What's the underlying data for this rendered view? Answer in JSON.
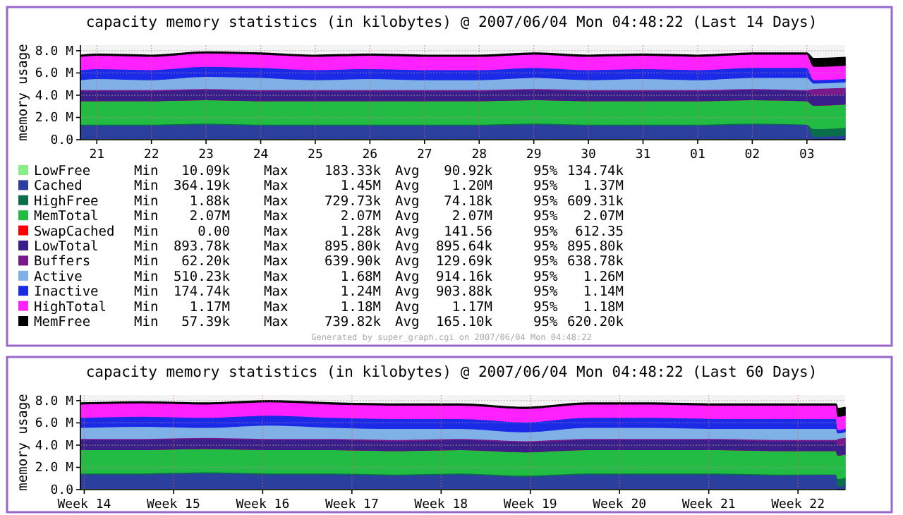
{
  "chart_data": [
    {
      "type": "area",
      "stacked": true,
      "grid": true,
      "legend": "bottom",
      "title": "capacity memory statistics (in kilobytes) @ 2007/06/04 Mon 04:48:22 (Last 14 Days)",
      "ylabel": "memory usage",
      "x": [
        "2007-05-21T04:48",
        "2007-05-21T12:00",
        "2007-05-22T12:00",
        "2007-05-23T12:00",
        "2007-05-24T12:00",
        "2007-05-25T12:00",
        "2007-05-26T12:00",
        "2007-05-27T12:00",
        "2007-05-28T12:00",
        "2007-05-29T12:00",
        "2007-05-30T12:00",
        "2007-05-31T12:00",
        "2007-06-01T12:00",
        "2007-06-02T12:00",
        "2007-06-03T12:00",
        "2007-06-03T15:00",
        "2007-06-04T04:48"
      ],
      "xlim": [
        "2007-05-21T04:48",
        "2007-06-04T04:48"
      ],
      "xticks": [
        {
          "value": "2007-05-21T12:00",
          "label": "21"
        },
        {
          "value": "2007-05-22T12:00",
          "label": "22"
        },
        {
          "value": "2007-05-23T12:00",
          "label": "23"
        },
        {
          "value": "2007-05-24T12:00",
          "label": "24"
        },
        {
          "value": "2007-05-25T12:00",
          "label": "25"
        },
        {
          "value": "2007-05-26T12:00",
          "label": "26"
        },
        {
          "value": "2007-05-27T12:00",
          "label": "27"
        },
        {
          "value": "2007-05-28T12:00",
          "label": "28"
        },
        {
          "value": "2007-05-29T12:00",
          "label": "29"
        },
        {
          "value": "2007-05-30T12:00",
          "label": "30"
        },
        {
          "value": "2007-05-31T12:00",
          "label": "31"
        },
        {
          "value": "2007-06-01T12:00",
          "label": "01"
        },
        {
          "value": "2007-06-02T12:00",
          "label": "02"
        },
        {
          "value": "2007-06-03T12:00",
          "label": "03"
        }
      ],
      "ylim": [
        0,
        8500000
      ],
      "yticks": [
        {
          "value": 0,
          "label": "0.0"
        },
        {
          "value": 2000000,
          "label": "2.0 M"
        },
        {
          "value": 4000000,
          "label": "4.0 M"
        },
        {
          "value": 6000000,
          "label": "6.0 M"
        },
        {
          "value": 8000000,
          "label": "8.0 M"
        }
      ],
      "series": [
        {
          "name": "LowFree",
          "color": "#88ee88",
          "values": [
            100000,
            100000,
            100000,
            100000,
            100000,
            100000,
            100000,
            100000,
            100000,
            100000,
            100000,
            100000,
            100000,
            100000,
            100000,
            0,
            0
          ]
        },
        {
          "name": "Cached",
          "color": "#2a3f9e",
          "values": [
            1200000,
            1200000,
            1200000,
            1300000,
            1200000,
            1200000,
            1200000,
            1200000,
            1200000,
            1300000,
            1200000,
            1200000,
            1200000,
            1300000,
            1300000,
            300000,
            400000
          ]
        },
        {
          "name": "HighFree",
          "color": "#0a6e4a",
          "values": [
            100000,
            100000,
            100000,
            100000,
            100000,
            100000,
            100000,
            100000,
            100000,
            100000,
            100000,
            100000,
            100000,
            100000,
            0,
            700000,
            700000
          ]
        },
        {
          "name": "MemTotal",
          "color": "#22bb44",
          "values": [
            2100000,
            2100000,
            2100000,
            2100000,
            2100000,
            2100000,
            2100000,
            2100000,
            2100000,
            2100000,
            2100000,
            2100000,
            2100000,
            2100000,
            2100000,
            2100000,
            2100000
          ]
        },
        {
          "name": "SwapCached",
          "color": "#ff0000",
          "values": [
            0,
            0,
            0,
            0,
            0,
            0,
            0,
            0,
            0,
            0,
            0,
            0,
            0,
            0,
            0,
            0,
            0
          ]
        },
        {
          "name": "LowTotal",
          "color": "#3a1f8a",
          "values": [
            900000,
            900000,
            900000,
            900000,
            900000,
            900000,
            900000,
            900000,
            900000,
            900000,
            900000,
            900000,
            900000,
            900000,
            900000,
            900000,
            900000
          ]
        },
        {
          "name": "Buffers",
          "color": "#7a1a8a",
          "values": [
            100000,
            100000,
            100000,
            100000,
            100000,
            100000,
            100000,
            100000,
            100000,
            100000,
            100000,
            100000,
            100000,
            100000,
            100000,
            600000,
            600000
          ]
        },
        {
          "name": "Active",
          "color": "#7fb0e6",
          "values": [
            900000,
            1000000,
            900000,
            1100000,
            1100000,
            900000,
            1000000,
            900000,
            900000,
            1000000,
            900000,
            1000000,
            900000,
            1000000,
            1100000,
            500000,
            500000
          ]
        },
        {
          "name": "Inactive",
          "color": "#1a2ae6",
          "values": [
            900000,
            900000,
            900000,
            900000,
            900000,
            900000,
            900000,
            900000,
            900000,
            900000,
            900000,
            900000,
            900000,
            900000,
            900000,
            300000,
            300000
          ]
        },
        {
          "name": "HighTotal",
          "color": "#ff22ff",
          "values": [
            1200000,
            1200000,
            1200000,
            1200000,
            1200000,
            1200000,
            1200000,
            1200000,
            1200000,
            1200000,
            1200000,
            1200000,
            1200000,
            1200000,
            1200000,
            1200000,
            1200000
          ]
        },
        {
          "name": "MemFree",
          "color": "#000000",
          "values": [
            100000,
            100000,
            100000,
            100000,
            100000,
            100000,
            100000,
            100000,
            100000,
            100000,
            100000,
            100000,
            100000,
            100000,
            100000,
            700000,
            700000
          ]
        }
      ],
      "annotations": [
        "Min",
        "10.09k",
        "Max",
        "183.33k",
        "Avg",
        "90.92k",
        "95%",
        "134.74k",
        "Min",
        "364.19k",
        "Max",
        "1.45M",
        "Avg",
        "1.20M",
        "95%",
        "1.37M",
        "Min",
        "1.88k",
        "Max",
        "729.73k",
        "Avg",
        "74.18k",
        "95%",
        "609.31k",
        "Min",
        "2.07M",
        "Max",
        "2.07M",
        "Avg",
        "2.07M",
        "95%",
        "2.07M",
        "Min",
        "0.00",
        "Max",
        "1.28k",
        "Avg",
        "141.56",
        "95%",
        "612.35",
        "Min",
        "893.78k",
        "Max",
        "895.80k",
        "Avg",
        "895.64k",
        "95%",
        "895.80k",
        "Min",
        "62.20k",
        "Max",
        "639.90k",
        "Avg",
        "129.69k",
        "95%",
        "638.78k",
        "Min",
        "510.23k",
        "Max",
        "1.68M",
        "Avg",
        "914.16k",
        "95%",
        "1.26M",
        "Min",
        "174.74k",
        "Max",
        "1.24M",
        "Avg",
        "903.88k",
        "95%",
        "1.14M",
        "Min",
        "1.17M",
        "Max",
        "1.18M",
        "Avg",
        "1.17M",
        "95%",
        "1.18M",
        "Min",
        "57.39k",
        "Max",
        "739.82k",
        "Avg",
        "165.10k",
        "95%",
        "620.20k",
        "Generated by super_graph.cgi on 2007/06/04 Mon 04:48:22"
      ]
    },
    {
      "type": "area",
      "stacked": true,
      "grid": true,
      "title": "capacity memory statistics (in kilobytes) @ 2007/06/04 Mon 04:48:22 (Last 60 Days)",
      "ylabel": "memory usage",
      "x": [
        "2007-04-05T04:48",
        "2007-04-10",
        "2007-04-15",
        "2007-04-20",
        "2007-04-25",
        "2007-04-30",
        "2007-05-05",
        "2007-05-10",
        "2007-05-15",
        "2007-05-20",
        "2007-05-25",
        "2007-05-30",
        "2007-06-03T12:00",
        "2007-06-03T15:00",
        "2007-06-04T04:48"
      ],
      "xlim": [
        "2007-04-05T04:48",
        "2007-06-04T04:48"
      ],
      "xticks": [
        {
          "value": "2007-04-05T12:00",
          "label": "Week 14"
        },
        {
          "value": "2007-04-12T12:00",
          "label": "Week 15"
        },
        {
          "value": "2007-04-19T12:00",
          "label": "Week 16"
        },
        {
          "value": "2007-04-26T12:00",
          "label": "Week 17"
        },
        {
          "value": "2007-05-03T12:00",
          "label": "Week 18"
        },
        {
          "value": "2007-05-10T12:00",
          "label": "Week 19"
        },
        {
          "value": "2007-05-17T12:00",
          "label": "Week 20"
        },
        {
          "value": "2007-05-24T12:00",
          "label": "Week 21"
        },
        {
          "value": "2007-05-31T12:00",
          "label": "Week 22"
        }
      ],
      "ylim": [
        0,
        8500000
      ],
      "yticks": [
        {
          "value": 0,
          "label": "0.0"
        },
        {
          "value": 2000000,
          "label": "2.0 M"
        },
        {
          "value": 4000000,
          "label": "4.0 M"
        },
        {
          "value": 6000000,
          "label": "6.0 M"
        },
        {
          "value": 8000000,
          "label": "8.0 M"
        }
      ],
      "series": [
        {
          "color": "#88ee88",
          "values": [
            100000,
            100000,
            100000,
            100000,
            100000,
            100000,
            100000,
            100000,
            100000,
            100000,
            100000,
            100000,
            100000,
            0,
            0
          ]
        },
        {
          "color": "#2a3f9e",
          "values": [
            1300000,
            1300000,
            1400000,
            1300000,
            1300000,
            1200000,
            1300000,
            1100000,
            1300000,
            1300000,
            1300000,
            1200000,
            1300000,
            300000,
            400000
          ]
        },
        {
          "color": "#0a6e4a",
          "values": [
            100000,
            100000,
            100000,
            100000,
            100000,
            100000,
            100000,
            100000,
            100000,
            100000,
            100000,
            100000,
            0,
            700000,
            700000
          ]
        },
        {
          "color": "#22bb44",
          "values": [
            2100000,
            2100000,
            2100000,
            2100000,
            2100000,
            2100000,
            2100000,
            2100000,
            2100000,
            2100000,
            2100000,
            2100000,
            2100000,
            2100000,
            2100000
          ]
        },
        {
          "color": "#ff0000",
          "values": [
            0,
            0,
            0,
            0,
            0,
            0,
            0,
            0,
            0,
            0,
            0,
            0,
            0,
            0,
            0
          ]
        },
        {
          "color": "#3a1f8a",
          "values": [
            900000,
            900000,
            900000,
            900000,
            900000,
            900000,
            900000,
            900000,
            900000,
            900000,
            900000,
            900000,
            900000,
            900000,
            900000
          ]
        },
        {
          "color": "#7a1a8a",
          "values": [
            100000,
            100000,
            100000,
            100000,
            100000,
            100000,
            100000,
            100000,
            100000,
            100000,
            100000,
            100000,
            100000,
            600000,
            600000
          ]
        },
        {
          "color": "#7fb0e6",
          "values": [
            1000000,
            1100000,
            900000,
            1200000,
            1000000,
            1000000,
            900000,
            800000,
            1000000,
            1000000,
            900000,
            1000000,
            1000000,
            500000,
            500000
          ]
        },
        {
          "color": "#1a2ae6",
          "values": [
            900000,
            900000,
            900000,
            900000,
            900000,
            900000,
            900000,
            900000,
            900000,
            900000,
            900000,
            900000,
            900000,
            300000,
            300000
          ]
        },
        {
          "color": "#ff22ff",
          "values": [
            1200000,
            1200000,
            1200000,
            1200000,
            1200000,
            1200000,
            1200000,
            1200000,
            1200000,
            1200000,
            1200000,
            1200000,
            1200000,
            1200000,
            1200000
          ]
        },
        {
          "color": "#000000",
          "values": [
            100000,
            100000,
            100000,
            100000,
            100000,
            100000,
            100000,
            100000,
            100000,
            100000,
            100000,
            100000,
            100000,
            700000,
            700000
          ]
        }
      ]
    }
  ]
}
